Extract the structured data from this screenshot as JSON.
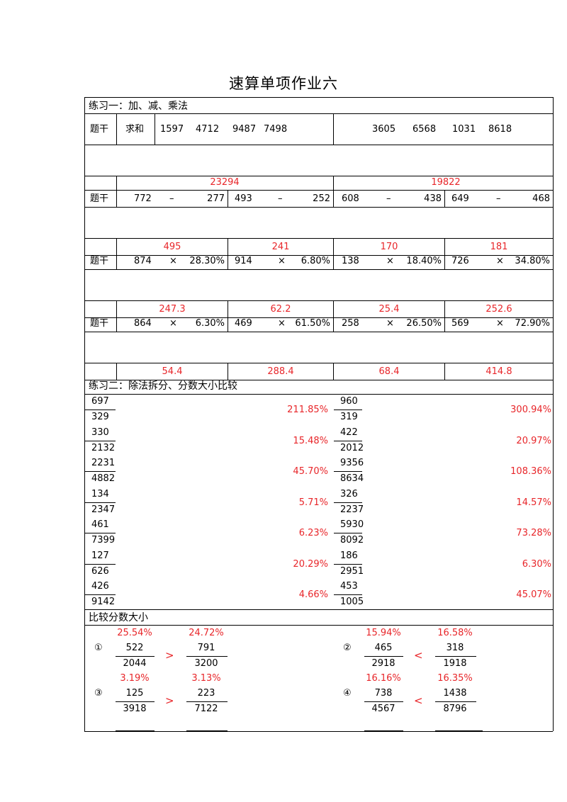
{
  "title": "速算单项作业六",
  "section1": {
    "heading": "练习一：加、减、乘法",
    "row_label": "题干",
    "sum_label": "求和",
    "sum_left": [
      "1597",
      "4712",
      "9487",
      "7498"
    ],
    "sum_right": [
      "3605",
      "6568",
      "1031",
      "8618"
    ],
    "sum_answers": [
      "23294",
      "19822"
    ],
    "subtraction": [
      {
        "a": "772",
        "op": "–",
        "b": "277",
        "ans": "495"
      },
      {
        "a": "493",
        "op": "–",
        "b": "252",
        "ans": "241"
      },
      {
        "a": "608",
        "op": "–",
        "b": "438",
        "ans": "170"
      },
      {
        "a": "649",
        "op": "–",
        "b": "468",
        "ans": "181"
      }
    ],
    "multiplication1": [
      {
        "a": "874",
        "op": "×",
        "b": "28.30%",
        "ans": "247.3"
      },
      {
        "a": "914",
        "op": "×",
        "b": "6.80%",
        "ans": "62.2"
      },
      {
        "a": "138",
        "op": "×",
        "b": "18.40%",
        "ans": "25.4"
      },
      {
        "a": "726",
        "op": "×",
        "b": "34.80%",
        "ans": "252.6"
      }
    ],
    "multiplication2": [
      {
        "a": "864",
        "op": "×",
        "b": "6.30%",
        "ans": "54.4"
      },
      {
        "a": "469",
        "op": "×",
        "b": "61.50%",
        "ans": "288.4"
      },
      {
        "a": "258",
        "op": "×",
        "b": "26.50%",
        "ans": "68.4"
      },
      {
        "a": "569",
        "op": "×",
        "b": "72.90%",
        "ans": "414.8"
      }
    ]
  },
  "section2": {
    "heading": "练习二：除法拆分、分数大小比较",
    "left": [
      {
        "num": "697",
        "den": "329",
        "ans": "211.85%"
      },
      {
        "num": "330",
        "den": "2132",
        "ans": "15.48%"
      },
      {
        "num": "2231",
        "den": "4882",
        "ans": "45.70%"
      },
      {
        "num": "134",
        "den": "2347",
        "ans": "5.71%"
      },
      {
        "num": "461",
        "den": "7399",
        "ans": "6.23%"
      },
      {
        "num": "127",
        "den": "626",
        "ans": "20.29%"
      },
      {
        "num": "426",
        "den": "9142",
        "ans": "4.66%"
      }
    ],
    "right": [
      {
        "num": "960",
        "den": "319",
        "ans": "300.94%"
      },
      {
        "num": "422",
        "den": "2012",
        "ans": "20.97%"
      },
      {
        "num": "9356",
        "den": "8634",
        "ans": "108.36%"
      },
      {
        "num": "326",
        "den": "2237",
        "ans": "14.57%"
      },
      {
        "num": "5930",
        "den": "8092",
        "ans": "73.28%"
      },
      {
        "num": "186",
        "den": "2951",
        "ans": "6.30%"
      },
      {
        "num": "453",
        "den": "1005",
        "ans": "45.07%"
      }
    ]
  },
  "section3": {
    "heading": "比较分数大小",
    "items": [
      {
        "label": "①",
        "p1": "25.54%",
        "n1": "522",
        "d1": "2044",
        "cmp": ">",
        "p2": "24.72%",
        "n2": "791",
        "d2": "3200"
      },
      {
        "label": "②",
        "p1": "15.94%",
        "n1": "465",
        "d1": "2918",
        "cmp": "<",
        "p2": "16.58%",
        "n2": "318",
        "d2": "1918"
      },
      {
        "label": "③",
        "p1": "3.19%",
        "n1": "125",
        "d1": "3918",
        "cmp": ">",
        "p2": "3.13%",
        "n2": "223",
        "d2": "7122"
      },
      {
        "label": "④",
        "p1": "16.16%",
        "n1": "738",
        "d1": "4567",
        "cmp": "<",
        "p2": "16.35%",
        "n2": "1438",
        "d2": "8796"
      }
    ]
  },
  "colors": {
    "answer": "#e8262a",
    "line": "#000000"
  }
}
